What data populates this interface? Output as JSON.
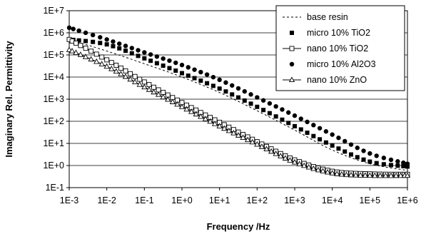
{
  "chart_data": {
    "type": "scatter",
    "xlabel": "Frequency /Hz",
    "ylabel": "Imaginary Rel. Permittivity",
    "xscale": "log",
    "yscale": "log",
    "xlim": [
      0.001,
      1000000
    ],
    "ylim": [
      0.1,
      10000000
    ],
    "x_tick_labels": [
      "1E-3",
      "1E-2",
      "1E-1",
      "1E+0",
      "1E+1",
      "1E+2",
      "1E+3",
      "1E+4",
      "1E+5",
      "1E+6"
    ],
    "y_tick_labels": [
      "1E-1",
      "1E+0",
      "1E+1",
      "1E+2",
      "1E+3",
      "1E+4",
      "1E+5",
      "1E+6",
      "1E+7"
    ],
    "grid": "horizontal major",
    "legend_position": "top-right",
    "series": [
      {
        "name": "base resin",
        "marker": "none",
        "line": "dotted",
        "color": "#000000",
        "points": [
          [
            0.001,
            500000
          ],
          [
            0.01,
            150000
          ],
          [
            0.1,
            40000
          ],
          [
            1,
            10000
          ],
          [
            10,
            2000
          ],
          [
            100,
            300
          ],
          [
            1000,
            40
          ],
          [
            10000,
            5
          ],
          [
            100000,
            1.2
          ],
          [
            1000000,
            0.6
          ]
        ]
      },
      {
        "name": "micro 10% TiO2",
        "marker": "filled-square",
        "line": "none",
        "color": "#000000",
        "points": [
          [
            0.001,
            500000
          ],
          [
            0.01,
            300000
          ],
          [
            0.1,
            70000
          ],
          [
            1,
            15000
          ],
          [
            10,
            3000
          ],
          [
            100,
            450
          ],
          [
            1000,
            60
          ],
          [
            10000,
            8
          ],
          [
            100000,
            1.5
          ],
          [
            1000000,
            0.9
          ]
        ]
      },
      {
        "name": "nano 10% TiO2",
        "marker": "open-square",
        "line": "solid",
        "color": "#000000",
        "points": [
          [
            0.001,
            500000
          ],
          [
            0.01,
            60000
          ],
          [
            0.1,
            6000
          ],
          [
            1,
            700
          ],
          [
            10,
            90
          ],
          [
            100,
            12
          ],
          [
            1000,
            1.8
          ],
          [
            10000,
            0.55
          ],
          [
            100000,
            0.42
          ],
          [
            1000000,
            0.4
          ]
        ]
      },
      {
        "name": "micro 10% Al2O3",
        "marker": "filled-circle",
        "line": "none",
        "color": "#000000",
        "points": [
          [
            0.001,
            1700000
          ],
          [
            0.01,
            500000
          ],
          [
            0.1,
            130000
          ],
          [
            1,
            35000
          ],
          [
            10,
            7500
          ],
          [
            100,
            1200
          ],
          [
            1000,
            180
          ],
          [
            10000,
            25
          ],
          [
            100000,
            3.5
          ],
          [
            1000000,
            1.2
          ]
        ]
      },
      {
        "name": "nano 10% ZnO",
        "marker": "open-triangle",
        "line": "solid",
        "color": "#000000",
        "points": [
          [
            0.001,
            170000
          ],
          [
            0.01,
            30000
          ],
          [
            0.1,
            3500
          ],
          [
            1,
            450
          ],
          [
            10,
            60
          ],
          [
            100,
            9
          ],
          [
            1000,
            1.4
          ],
          [
            10000,
            0.45
          ],
          [
            100000,
            0.35
          ],
          [
            1000000,
            0.35
          ]
        ]
      }
    ]
  }
}
